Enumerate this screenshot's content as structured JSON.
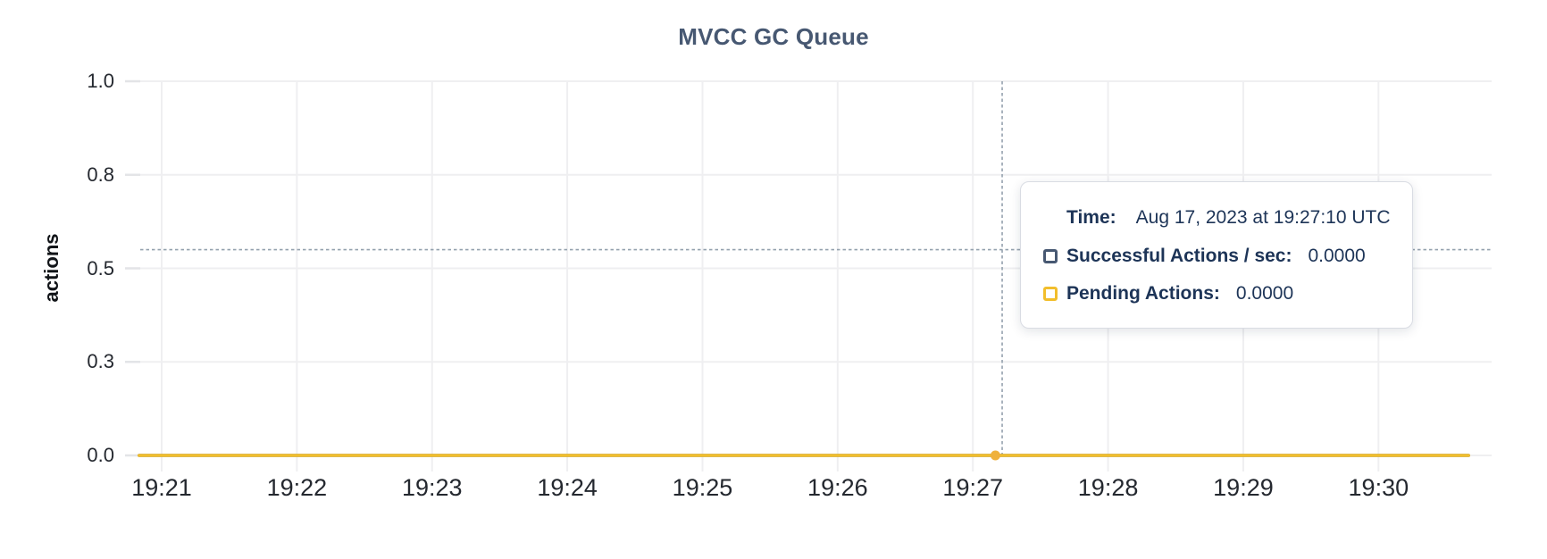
{
  "chart_data": {
    "type": "line",
    "title": "MVCC GC Queue",
    "xlabel": "",
    "ylabel": "actions",
    "x_tick_labels": [
      "19:21",
      "19:22",
      "19:23",
      "19:24",
      "19:25",
      "19:26",
      "19:27",
      "19:28",
      "19:29",
      "19:30"
    ],
    "y_tick_labels": [
      "1.0",
      "0.8",
      "0.5",
      "0.3",
      "0.0"
    ],
    "ylim": [
      0,
      1.0
    ],
    "x_data_start": "19:20:50",
    "x_data_end": "19:30:40",
    "grid": true,
    "legend_position": "tooltip",
    "series": [
      {
        "name": "Successful Actions / sec",
        "color": "#475872",
        "constant_value": 0.0
      },
      {
        "name": "Pending Actions",
        "color": "#F2BE2C",
        "constant_value": 0.0
      }
    ],
    "hover": {
      "point_time": "19:27:10",
      "point_value": 0.0,
      "crosshair_time": "19:27:13",
      "crosshair_value": 0.55
    }
  },
  "tooltip": {
    "time_label": "Time:",
    "time_value": "Aug 17, 2023 at 19:27:10 UTC",
    "rows": [
      {
        "label": "Successful Actions / sec:",
        "value": "0.0000",
        "color": "#475872",
        "icon": "successful-actions-swatch-icon"
      },
      {
        "label": "Pending Actions:",
        "value": "0.0000",
        "color": "#F2BE2C",
        "icon": "pending-actions-swatch-icon"
      }
    ]
  },
  "colors": {
    "page_bg": "#FFFFFF",
    "title_text": "#475872",
    "tick_text": "#24282F",
    "gridline": "#EFEFF1",
    "tick_mark": "#E3E4E7",
    "crosshair": "#94A1AE",
    "series_successful": "#475872",
    "series_pending": "#F2BE2C",
    "hover_point": "#EFB13C",
    "tooltip_text": "#1D3457",
    "tooltip_border": "#D9DCE3"
  }
}
